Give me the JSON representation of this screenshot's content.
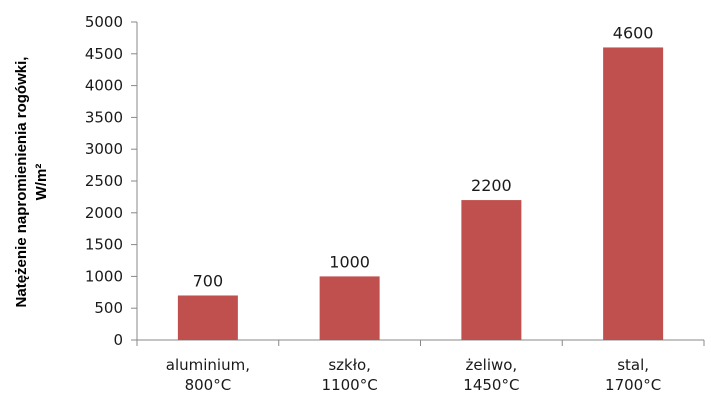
{
  "chart_data": {
    "type": "bar",
    "title": "",
    "xlabel": "",
    "ylabel": {
      "line1": "Natężenie napromienienia rogówki,",
      "line2": "W/m²"
    },
    "categories": [
      [
        "aluminium,",
        "800°C"
      ],
      [
        "szkło,",
        "1100°C"
      ],
      [
        "żeliwo,",
        "1450°C"
      ],
      [
        "stal,",
        "1700°C"
      ]
    ],
    "values": [
      700,
      1000,
      2200,
      4600
    ],
    "data_labels": [
      "700",
      "1000",
      "2200",
      "4600"
    ],
    "ylim": [
      0,
      5000
    ],
    "yticks": [
      "0",
      "500",
      "1000",
      "1500",
      "2000",
      "2500",
      "3000",
      "3500",
      "4000",
      "4500",
      "5000"
    ],
    "grid": false,
    "legend": "none",
    "bar_color": "#c0504d"
  }
}
